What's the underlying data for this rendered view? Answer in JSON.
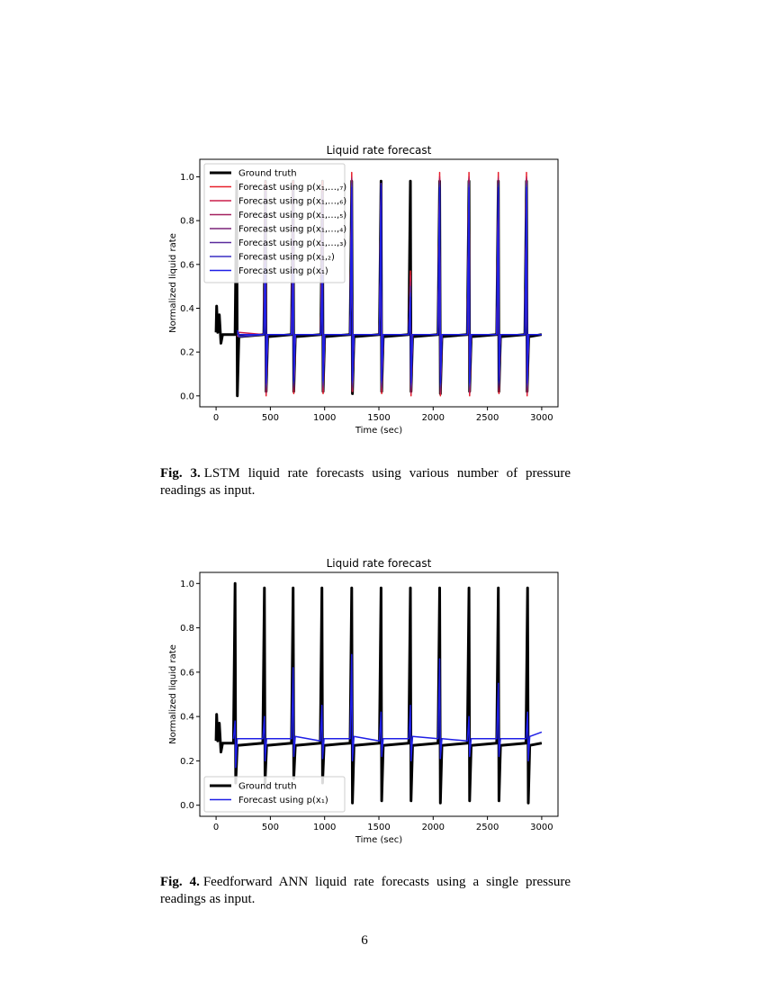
{
  "chart_data": [
    {
      "type": "line",
      "title": "Liquid rate forecast",
      "x_label": "Time (sec)",
      "y_label": "Normalized liquid rate",
      "xlim": [
        -150,
        3150
      ],
      "ylim": [
        -0.05,
        1.08
      ],
      "xticks": [
        0,
        500,
        1000,
        1500,
        2000,
        2500,
        3000
      ],
      "yticks": [
        {
          "value": 0,
          "label": "0.0"
        },
        0.2,
        0.4,
        0.6,
        0.8,
        {
          "value": 1,
          "label": "1.0"
        }
      ],
      "legend": "upper left",
      "x": [
        0,
        5,
        15,
        30,
        45,
        60,
        175,
        190,
        196,
        210,
        440,
        455,
        461,
        475,
        695,
        710,
        716,
        730,
        965,
        980,
        986,
        1000,
        1235,
        1250,
        1256,
        1270,
        1505,
        1520,
        1526,
        1540,
        1775,
        1790,
        1796,
        1810,
        2045,
        2060,
        2066,
        2080,
        2315,
        2330,
        2336,
        2350,
        2585,
        2600,
        2606,
        2620,
        2845,
        2860,
        2866,
        2880,
        3000
      ],
      "series": [
        {
          "name": "Ground truth",
          "color": "#000000",
          "values": [
            0.29,
            0.41,
            0.29,
            0.37,
            0.24,
            0.28,
            0.28,
            0.98,
            0.0,
            0.27,
            0.28,
            0.98,
            0.02,
            0.27,
            0.28,
            0.98,
            0.02,
            0.27,
            0.28,
            0.98,
            0.02,
            0.27,
            0.28,
            0.98,
            0.01,
            0.27,
            0.28,
            0.98,
            0.02,
            0.27,
            0.28,
            0.98,
            0.02,
            0.27,
            0.28,
            0.98,
            0.01,
            0.27,
            0.28,
            0.98,
            0.02,
            0.27,
            0.28,
            0.98,
            0.02,
            0.27,
            0.28,
            0.98,
            0.02,
            0.27,
            0.28
          ]
        },
        {
          "name": "Forecast using p(x₁,…,₇)",
          "color": "#e8202a",
          "values": [
            null,
            null,
            null,
            null,
            null,
            null,
            null,
            null,
            0.27,
            0.28,
            0.28,
            0.98,
            0.0,
            0.28,
            0.28,
            0.98,
            0.01,
            0.28,
            0.28,
            0.98,
            0.01,
            0.28,
            0.28,
            1.02,
            0.02,
            0.28,
            0.28,
            0.97,
            0.01,
            0.28,
            0.28,
            0.57,
            0.0,
            0.28,
            0.28,
            1.02,
            0.0,
            0.28,
            0.28,
            1.02,
            0.0,
            0.28,
            0.28,
            1.02,
            0.01,
            0.28,
            0.28,
            1.02,
            0.0,
            0.28,
            0.28
          ]
        },
        {
          "name": "Forecast using p(x₁,…,₆)",
          "color": "#cc1f4a",
          "values": [
            null,
            null,
            null,
            null,
            null,
            null,
            null,
            null,
            0.27,
            0.29,
            0.28,
            0.96,
            0.01,
            0.28,
            0.28,
            0.97,
            0.02,
            0.28,
            0.28,
            0.95,
            0.02,
            0.28,
            0.28,
            1.0,
            0.02,
            0.28,
            0.28,
            0.96,
            0.02,
            0.28,
            0.28,
            0.55,
            0.01,
            0.28,
            0.28,
            1.0,
            0.01,
            0.28,
            0.28,
            1.0,
            0.01,
            0.28,
            0.28,
            1.0,
            0.02,
            0.28,
            0.28,
            1.0,
            0.01,
            0.28,
            0.28
          ]
        },
        {
          "name": "Forecast using p(x₁,…,₅)",
          "color": "#a3205e",
          "values": [
            null,
            null,
            null,
            null,
            null,
            null,
            null,
            null,
            0.28,
            0.28,
            0.28,
            0.95,
            0.02,
            0.28,
            0.28,
            0.96,
            0.03,
            0.28,
            0.28,
            0.94,
            0.03,
            0.28,
            0.28,
            0.99,
            0.03,
            0.28,
            0.28,
            0.95,
            0.03,
            0.28,
            0.28,
            0.52,
            0.02,
            0.28,
            0.28,
            0.99,
            0.02,
            0.28,
            0.28,
            0.99,
            0.02,
            0.28,
            0.28,
            0.99,
            0.03,
            0.28,
            0.28,
            0.99,
            0.02,
            0.28,
            0.28
          ]
        },
        {
          "name": "Forecast using p(x₁,…,₄)",
          "color": "#7a2478",
          "values": [
            null,
            null,
            null,
            null,
            null,
            null,
            null,
            null,
            0.28,
            0.27,
            0.28,
            0.94,
            0.03,
            0.28,
            0.28,
            0.95,
            0.04,
            0.28,
            0.28,
            0.93,
            0.04,
            0.28,
            0.28,
            0.98,
            0.04,
            0.28,
            0.28,
            0.94,
            0.04,
            0.28,
            0.28,
            0.5,
            0.03,
            0.28,
            0.28,
            0.98,
            0.03,
            0.28,
            0.28,
            0.98,
            0.03,
            0.28,
            0.28,
            0.98,
            0.04,
            0.28,
            0.28,
            0.98,
            0.03,
            0.28,
            0.28
          ]
        },
        {
          "name": "Forecast using p(x₁,…,₃)",
          "color": "#5a2a9c",
          "values": [
            null,
            null,
            null,
            null,
            null,
            null,
            null,
            null,
            0.29,
            0.28,
            0.28,
            0.93,
            0.04,
            0.28,
            0.28,
            0.94,
            0.05,
            0.28,
            0.28,
            0.92,
            0.05,
            0.28,
            0.28,
            0.97,
            0.05,
            0.28,
            0.28,
            0.93,
            0.05,
            0.28,
            0.28,
            0.5,
            0.04,
            0.28,
            0.28,
            0.97,
            0.04,
            0.28,
            0.28,
            0.97,
            0.04,
            0.28,
            0.28,
            0.97,
            0.05,
            0.28,
            0.28,
            0.97,
            0.04,
            0.28,
            0.28
          ]
        },
        {
          "name": "Forecast using p(x₁,₂)",
          "color": "#3a2fc4",
          "values": [
            null,
            null,
            null,
            null,
            null,
            null,
            null,
            null,
            0.29,
            0.27,
            0.28,
            0.6,
            0.05,
            0.28,
            0.28,
            0.58,
            0.06,
            0.28,
            0.28,
            0.55,
            0.06,
            0.28,
            0.28,
            0.96,
            0.06,
            0.28,
            0.28,
            0.97,
            0.06,
            0.28,
            0.28,
            0.47,
            0.05,
            0.28,
            0.28,
            0.96,
            0.05,
            0.28,
            0.28,
            0.96,
            0.05,
            0.28,
            0.28,
            0.96,
            0.06,
            0.28,
            0.28,
            0.96,
            0.05,
            0.28,
            0.28
          ]
        },
        {
          "name": "Forecast using p(x₁)",
          "color": "#1f1fe6",
          "values": [
            null,
            null,
            null,
            null,
            null,
            null,
            null,
            null,
            0.3,
            0.28,
            0.28,
            0.58,
            0.06,
            0.28,
            0.28,
            0.55,
            0.07,
            0.28,
            0.28,
            0.55,
            0.07,
            0.28,
            0.28,
            0.95,
            0.07,
            0.28,
            0.28,
            0.96,
            0.07,
            0.28,
            0.28,
            0.45,
            0.06,
            0.28,
            0.28,
            0.95,
            0.06,
            0.28,
            0.28,
            0.95,
            0.06,
            0.28,
            0.28,
            0.95,
            0.07,
            0.28,
            0.28,
            0.95,
            0.06,
            0.28,
            0.28
          ]
        }
      ]
    },
    {
      "type": "line",
      "title": "Liquid rate forecast",
      "x_label": "Time (sec)",
      "y_label": "Normalized liquid rate",
      "xlim": [
        -150,
        3150
      ],
      "ylim": [
        -0.05,
        1.05
      ],
      "xticks": [
        0,
        500,
        1000,
        1500,
        2000,
        2500,
        3000
      ],
      "yticks": [
        {
          "value": 0,
          "label": "0.0"
        },
        0.2,
        0.4,
        0.6,
        0.8,
        {
          "value": 1,
          "label": "1.0"
        }
      ],
      "legend": "lower left",
      "x": [
        0,
        5,
        15,
        30,
        45,
        60,
        160,
        175,
        181,
        195,
        430,
        445,
        451,
        465,
        695,
        710,
        716,
        730,
        960,
        975,
        981,
        995,
        1235,
        1250,
        1256,
        1270,
        1505,
        1520,
        1526,
        1540,
        1775,
        1790,
        1796,
        1810,
        2045,
        2060,
        2066,
        2080,
        2315,
        2330,
        2336,
        2350,
        2585,
        2600,
        2606,
        2620,
        2855,
        2870,
        2876,
        2890,
        3000
      ],
      "series": [
        {
          "name": "Ground truth",
          "color": "#000000",
          "values": [
            0.29,
            0.41,
            0.29,
            0.37,
            0.24,
            0.28,
            0.28,
            1.0,
            0.1,
            0.27,
            0.28,
            0.98,
            0.1,
            0.27,
            0.28,
            0.98,
            0.12,
            0.27,
            0.28,
            0.98,
            0.1,
            0.27,
            0.28,
            0.98,
            0.01,
            0.27,
            0.28,
            0.98,
            0.02,
            0.27,
            0.28,
            0.98,
            0.02,
            0.27,
            0.28,
            0.98,
            0.01,
            0.27,
            0.28,
            0.98,
            0.02,
            0.27,
            0.28,
            0.98,
            0.02,
            0.27,
            0.28,
            0.98,
            0.01,
            0.27,
            0.28
          ]
        },
        {
          "name": "Forecast using p(x₁)",
          "color": "#1f1fe6",
          "values": [
            null,
            null,
            null,
            null,
            null,
            null,
            0.3,
            0.38,
            0.17,
            0.3,
            0.3,
            0.4,
            0.2,
            0.3,
            0.3,
            0.62,
            0.22,
            0.31,
            0.29,
            0.45,
            0.21,
            0.3,
            0.3,
            0.68,
            0.2,
            0.31,
            0.29,
            0.42,
            0.22,
            0.3,
            0.3,
            0.45,
            0.2,
            0.31,
            0.3,
            0.66,
            0.21,
            0.3,
            0.29,
            0.4,
            0.22,
            0.3,
            0.3,
            0.55,
            0.22,
            0.3,
            0.3,
            0.42,
            0.2,
            0.31,
            0.33
          ]
        }
      ]
    }
  ],
  "captions": [
    {
      "label": "Fig. 3.",
      "text": "LSTM liquid rate forecasts using various number of pressure readings as input."
    },
    {
      "label": "Fig. 4.",
      "text": "Feedforward ANN liquid rate forecasts using a single pressure readings as input."
    }
  ],
  "page_number": "6"
}
